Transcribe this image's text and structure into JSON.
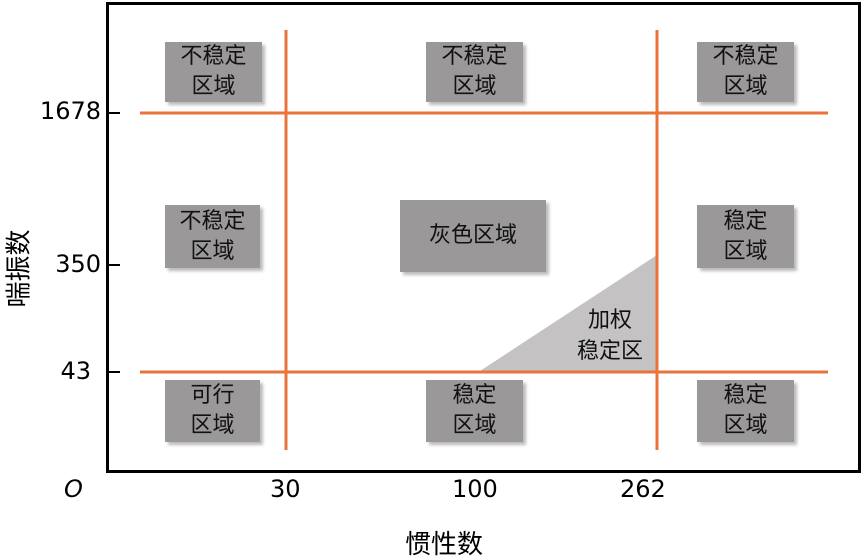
{
  "axes": {
    "x_label": "惯性数",
    "y_label": "喘振数",
    "origin": "O",
    "x_ticks": [
      "30",
      "100",
      "262"
    ],
    "y_ticks": [
      "1678",
      "350",
      "43"
    ]
  },
  "regions": {
    "top_left": [
      "不稳定",
      "区域"
    ],
    "top_mid": [
      "不稳定",
      "区域"
    ],
    "top_right": [
      "不稳定",
      "区域"
    ],
    "mid_left": [
      "不稳定",
      "区域"
    ],
    "mid_center": [
      "灰色区域"
    ],
    "mid_right": [
      "稳定",
      "区域"
    ],
    "bottom_left": [
      "可行",
      "区域"
    ],
    "bottom_mid": [
      "稳定",
      "区域"
    ],
    "bottom_right": [
      "稳定",
      "区域"
    ],
    "weighted": [
      "加权",
      "稳定区"
    ]
  },
  "colors": {
    "threshold_line": "#e8743b",
    "box": "#9b9899",
    "weighted_area": "#c4c2c2"
  }
}
